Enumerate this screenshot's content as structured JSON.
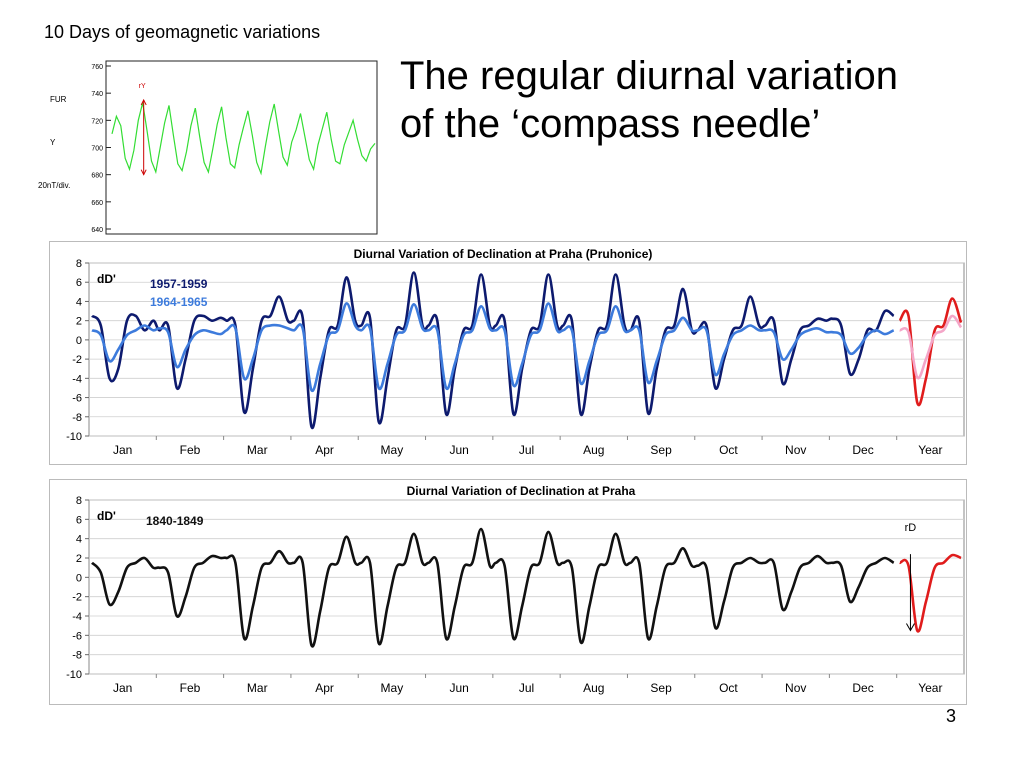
{
  "slide": {
    "small_title": "10 Days of geomagnetic variations",
    "title_line1": "The regular diurnal variation",
    "title_line2": "of the ‘compass needle’",
    "page_number": "3"
  },
  "colors": {
    "green_trace": "#33dd33",
    "dark_blue": "#0d1a6e",
    "light_blue": "#3d7bdc",
    "black": "#111111",
    "red": "#e01c1c",
    "pink": "#f4a6c8",
    "arrow_red": "#cc0000"
  },
  "chart_data": [
    {
      "type": "line",
      "title": "",
      "left_labels": [
        "FUR",
        "Y",
        "20nT/div."
      ],
      "annotation": "rY",
      "yticks": [
        "760",
        "740",
        "720",
        "700",
        "680",
        "660",
        "640"
      ],
      "ylim": [
        640,
        760
      ],
      "series": [
        {
          "values": [
            710,
            723,
            716,
            692,
            684,
            698,
            720,
            733,
            712,
            690,
            682,
            700,
            718,
            731,
            709,
            688,
            683,
            697,
            716,
            729,
            708,
            689,
            682,
            699,
            717,
            730,
            707,
            688,
            685,
            702,
            715,
            727,
            709,
            689,
            681,
            701,
            719,
            732,
            712,
            693,
            687,
            704,
            713,
            725,
            708,
            691,
            684,
            702,
            714,
            726,
            706,
            690,
            688,
            702,
            711,
            720,
            706,
            694,
            690,
            699,
            703
          ]
        }
      ]
    },
    {
      "type": "line",
      "title": "Diurnal Variation of Declination at Praha (Pruhonice)",
      "ylabel": "dD'",
      "ylim": [
        -10,
        8
      ],
      "yticks": [
        8,
        6,
        4,
        2,
        0,
        -2,
        -4,
        -6,
        -8,
        -10
      ],
      "categories": [
        "Jan",
        "Feb",
        "Mar",
        "Apr",
        "May",
        "Jun",
        "Jul",
        "Aug",
        "Sep",
        "Oct",
        "Nov",
        "Dec",
        "Year"
      ],
      "grid": true,
      "legend": "top-left",
      "series": [
        {
          "name": "1957-1959",
          "monthly": [
            [
              2.5,
              1.5,
              -4,
              -3,
              2,
              2.5,
              1,
              2
            ],
            [
              1,
              1.5,
              -5,
              -2,
              2,
              2.5,
              2,
              2.3
            ],
            [
              2,
              1.5,
              -7.5,
              -3,
              2,
              2.5,
              4.5,
              2
            ],
            [
              2,
              2.3,
              -9,
              -4,
              1,
              1.5,
              6.5,
              2
            ],
            [
              1.5,
              2.3,
              -8.5,
              -4,
              1,
              1.5,
              7,
              1.5
            ],
            [
              1.5,
              2,
              -7.7,
              -3,
              1,
              1.5,
              6.8,
              1.5
            ],
            [
              1.5,
              2,
              -7.7,
              -3,
              1,
              1.5,
              6.8,
              1.5
            ],
            [
              1.5,
              2,
              -7.7,
              -3,
              1,
              1.5,
              6.8,
              1.5
            ],
            [
              1,
              2,
              -7.6,
              -3,
              1,
              1.5,
              5.3,
              1
            ],
            [
              1,
              1.5,
              -5,
              -2,
              1,
              1.5,
              4.5,
              1.5
            ],
            [
              1.5,
              2,
              -4.5,
              -2,
              1,
              1.5,
              2.2,
              2
            ],
            [
              2.2,
              1.5,
              -3.5,
              -2,
              1,
              1,
              3,
              2.5
            ]
          ],
          "year": [
            2,
            2.5,
            -6.5,
            -4,
            1,
            1.5,
            4.3,
            1.8
          ]
        },
        {
          "name": "1964-1965",
          "monthly": [
            [
              1,
              0.5,
              -2.2,
              -1,
              0.5,
              1,
              1.5,
              1
            ],
            [
              1.2,
              0.8,
              -2.8,
              -1,
              0.5,
              1,
              0.8,
              0.6
            ],
            [
              1,
              1.2,
              -4,
              -2,
              1,
              1.5,
              1.5,
              1.2
            ],
            [
              1,
              1.2,
              -5.2,
              -2.5,
              0.5,
              1,
              3.8,
              1.5
            ],
            [
              1,
              1.2,
              -5,
              -2.5,
              0.5,
              1,
              3.7,
              1.2
            ],
            [
              1,
              1,
              -5,
              -2.5,
              0.5,
              1,
              3.5,
              1.2
            ],
            [
              1,
              1,
              -4.7,
              -2.5,
              0.5,
              1,
              3.8,
              1
            ],
            [
              1,
              1,
              -4.5,
              -2.2,
              0.5,
              1,
              3.5,
              1
            ],
            [
              1,
              1,
              -4.4,
              -2.2,
              0.5,
              1,
              2.3,
              1
            ],
            [
              1,
              1,
              -3.6,
              -1.5,
              0.5,
              1,
              1.5,
              1
            ],
            [
              1,
              0.8,
              -2,
              -1,
              0.5,
              1,
              1.2,
              0.8
            ],
            [
              0.8,
              0.5,
              -1.4,
              -0.8,
              0.5,
              1,
              0.6,
              1
            ]
          ],
          "year": [
            1,
            0.8,
            -3.9,
            -2,
            0.5,
            1,
            2.5,
            1.3
          ]
        }
      ]
    },
    {
      "type": "line",
      "title": "Diurnal Variation of Declination at Praha",
      "ylabel": "dD'",
      "ylim": [
        -10,
        8
      ],
      "yticks": [
        8,
        6,
        4,
        2,
        0,
        -2,
        -4,
        -6,
        -8,
        -10
      ],
      "categories": [
        "Jan",
        "Feb",
        "Mar",
        "Apr",
        "May",
        "Jun",
        "Jul",
        "Aug",
        "Sep",
        "Oct",
        "Nov",
        "Dec",
        "Year"
      ],
      "grid": true,
      "legend": "top-left",
      "annotation": "rD",
      "series": [
        {
          "name": "1840-1849",
          "monthly": [
            [
              1.5,
              0.5,
              -2.8,
              -1.5,
              1,
              1.5,
              2,
              1
            ],
            [
              1,
              0.5,
              -4,
              -2,
              1,
              1.5,
              2.2,
              2
            ],
            [
              2,
              1.5,
              -6.3,
              -3,
              1,
              1.5,
              2.7,
              1.5
            ],
            [
              1.5,
              1.5,
              -7,
              -3.5,
              1,
              1.5,
              4.2,
              1.5
            ],
            [
              1.5,
              1.5,
              -6.8,
              -3,
              1,
              1.5,
              4.5,
              1.5
            ],
            [
              1.5,
              1.5,
              -6.3,
              -3,
              1,
              1.5,
              5,
              1.2
            ],
            [
              1.5,
              1.2,
              -6.3,
              -3,
              1,
              1.5,
              4.7,
              1.5
            ],
            [
              1.5,
              1,
              -6.7,
              -3,
              1,
              1.5,
              4.5,
              1.5
            ],
            [
              1.5,
              1.5,
              -6.3,
              -3,
              1,
              1.5,
              3,
              1.2
            ],
            [
              1.2,
              1,
              -5.2,
              -2.5,
              1,
              1.5,
              2,
              1.5
            ],
            [
              1.5,
              1.5,
              -3.3,
              -1.5,
              1,
              1.5,
              2.2,
              1.5
            ],
            [
              1.5,
              1.2,
              -2.5,
              -1,
              1,
              1.5,
              2,
              1.5
            ]
          ],
          "year": [
            1.5,
            1.2,
            -5.5,
            -2.5,
            1,
            1.5,
            2.3,
            2
          ]
        }
      ]
    }
  ]
}
